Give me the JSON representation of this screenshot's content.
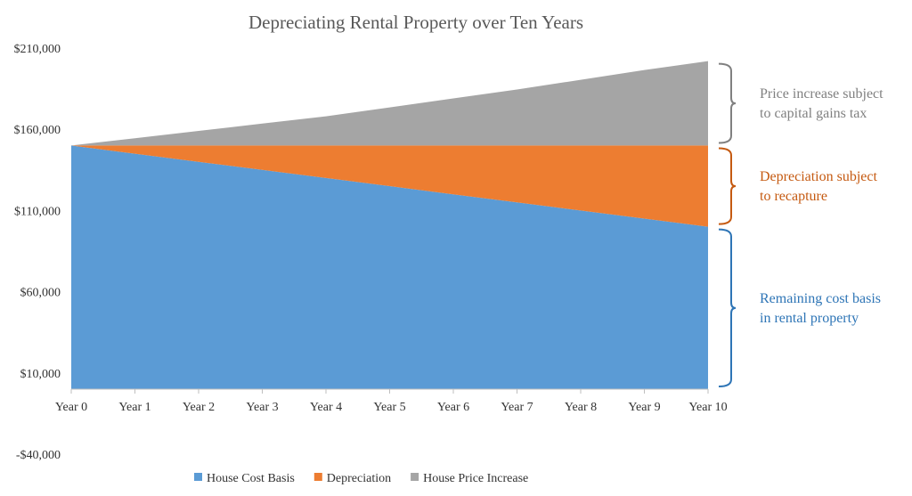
{
  "chart_data": {
    "type": "area",
    "stacked": true,
    "title": "Depreciating Rental Property over Ten Years",
    "xlabel": "",
    "ylabel": "",
    "categories": [
      "Year 0",
      "Year 1",
      "Year 2",
      "Year 3",
      "Year 4",
      "Year 5",
      "Year 6",
      "Year 7",
      "Year 8",
      "Year 9",
      "Year 10"
    ],
    "series": [
      {
        "name": "House Cost Basis",
        "color": "#5B9BD5",
        "values": [
          150000,
          145000,
          140000,
          135000,
          130000,
          125000,
          120000,
          115000,
          110000,
          105000,
          100000
        ]
      },
      {
        "name": "Depreciation",
        "color": "#ED7D31",
        "values": [
          0,
          5000,
          10000,
          15000,
          20000,
          25000,
          30000,
          35000,
          40000,
          45000,
          50000
        ]
      },
      {
        "name": "House Price Increase",
        "color": "#A5A5A5",
        "values": [
          0,
          4500,
          9000,
          13500,
          18000,
          23500,
          29000,
          34500,
          40500,
          46500,
          52000
        ]
      }
    ],
    "yaxis": {
      "min": -40000,
      "max": 210000,
      "baseline": 0,
      "ticks": [
        210000,
        160000,
        110000,
        60000,
        10000,
        -40000
      ],
      "tick_labels": [
        "$210,000",
        "$160,000",
        "$110,000",
        "$60,000",
        "$10,000",
        "-$40,000"
      ]
    },
    "grid": false,
    "legend_position": "bottom",
    "annotations": [
      {
        "series": "House Price Increase",
        "color": "#808080",
        "lines": [
          "Price increase subject",
          "to capital gains tax"
        ]
      },
      {
        "series": "Depreciation",
        "color": "#C55A11",
        "lines": [
          "Depreciation subject",
          "to recapture"
        ]
      },
      {
        "series": "House Cost Basis",
        "color": "#2E75B6",
        "lines": [
          "Remaining cost basis",
          "in rental property"
        ]
      }
    ]
  }
}
